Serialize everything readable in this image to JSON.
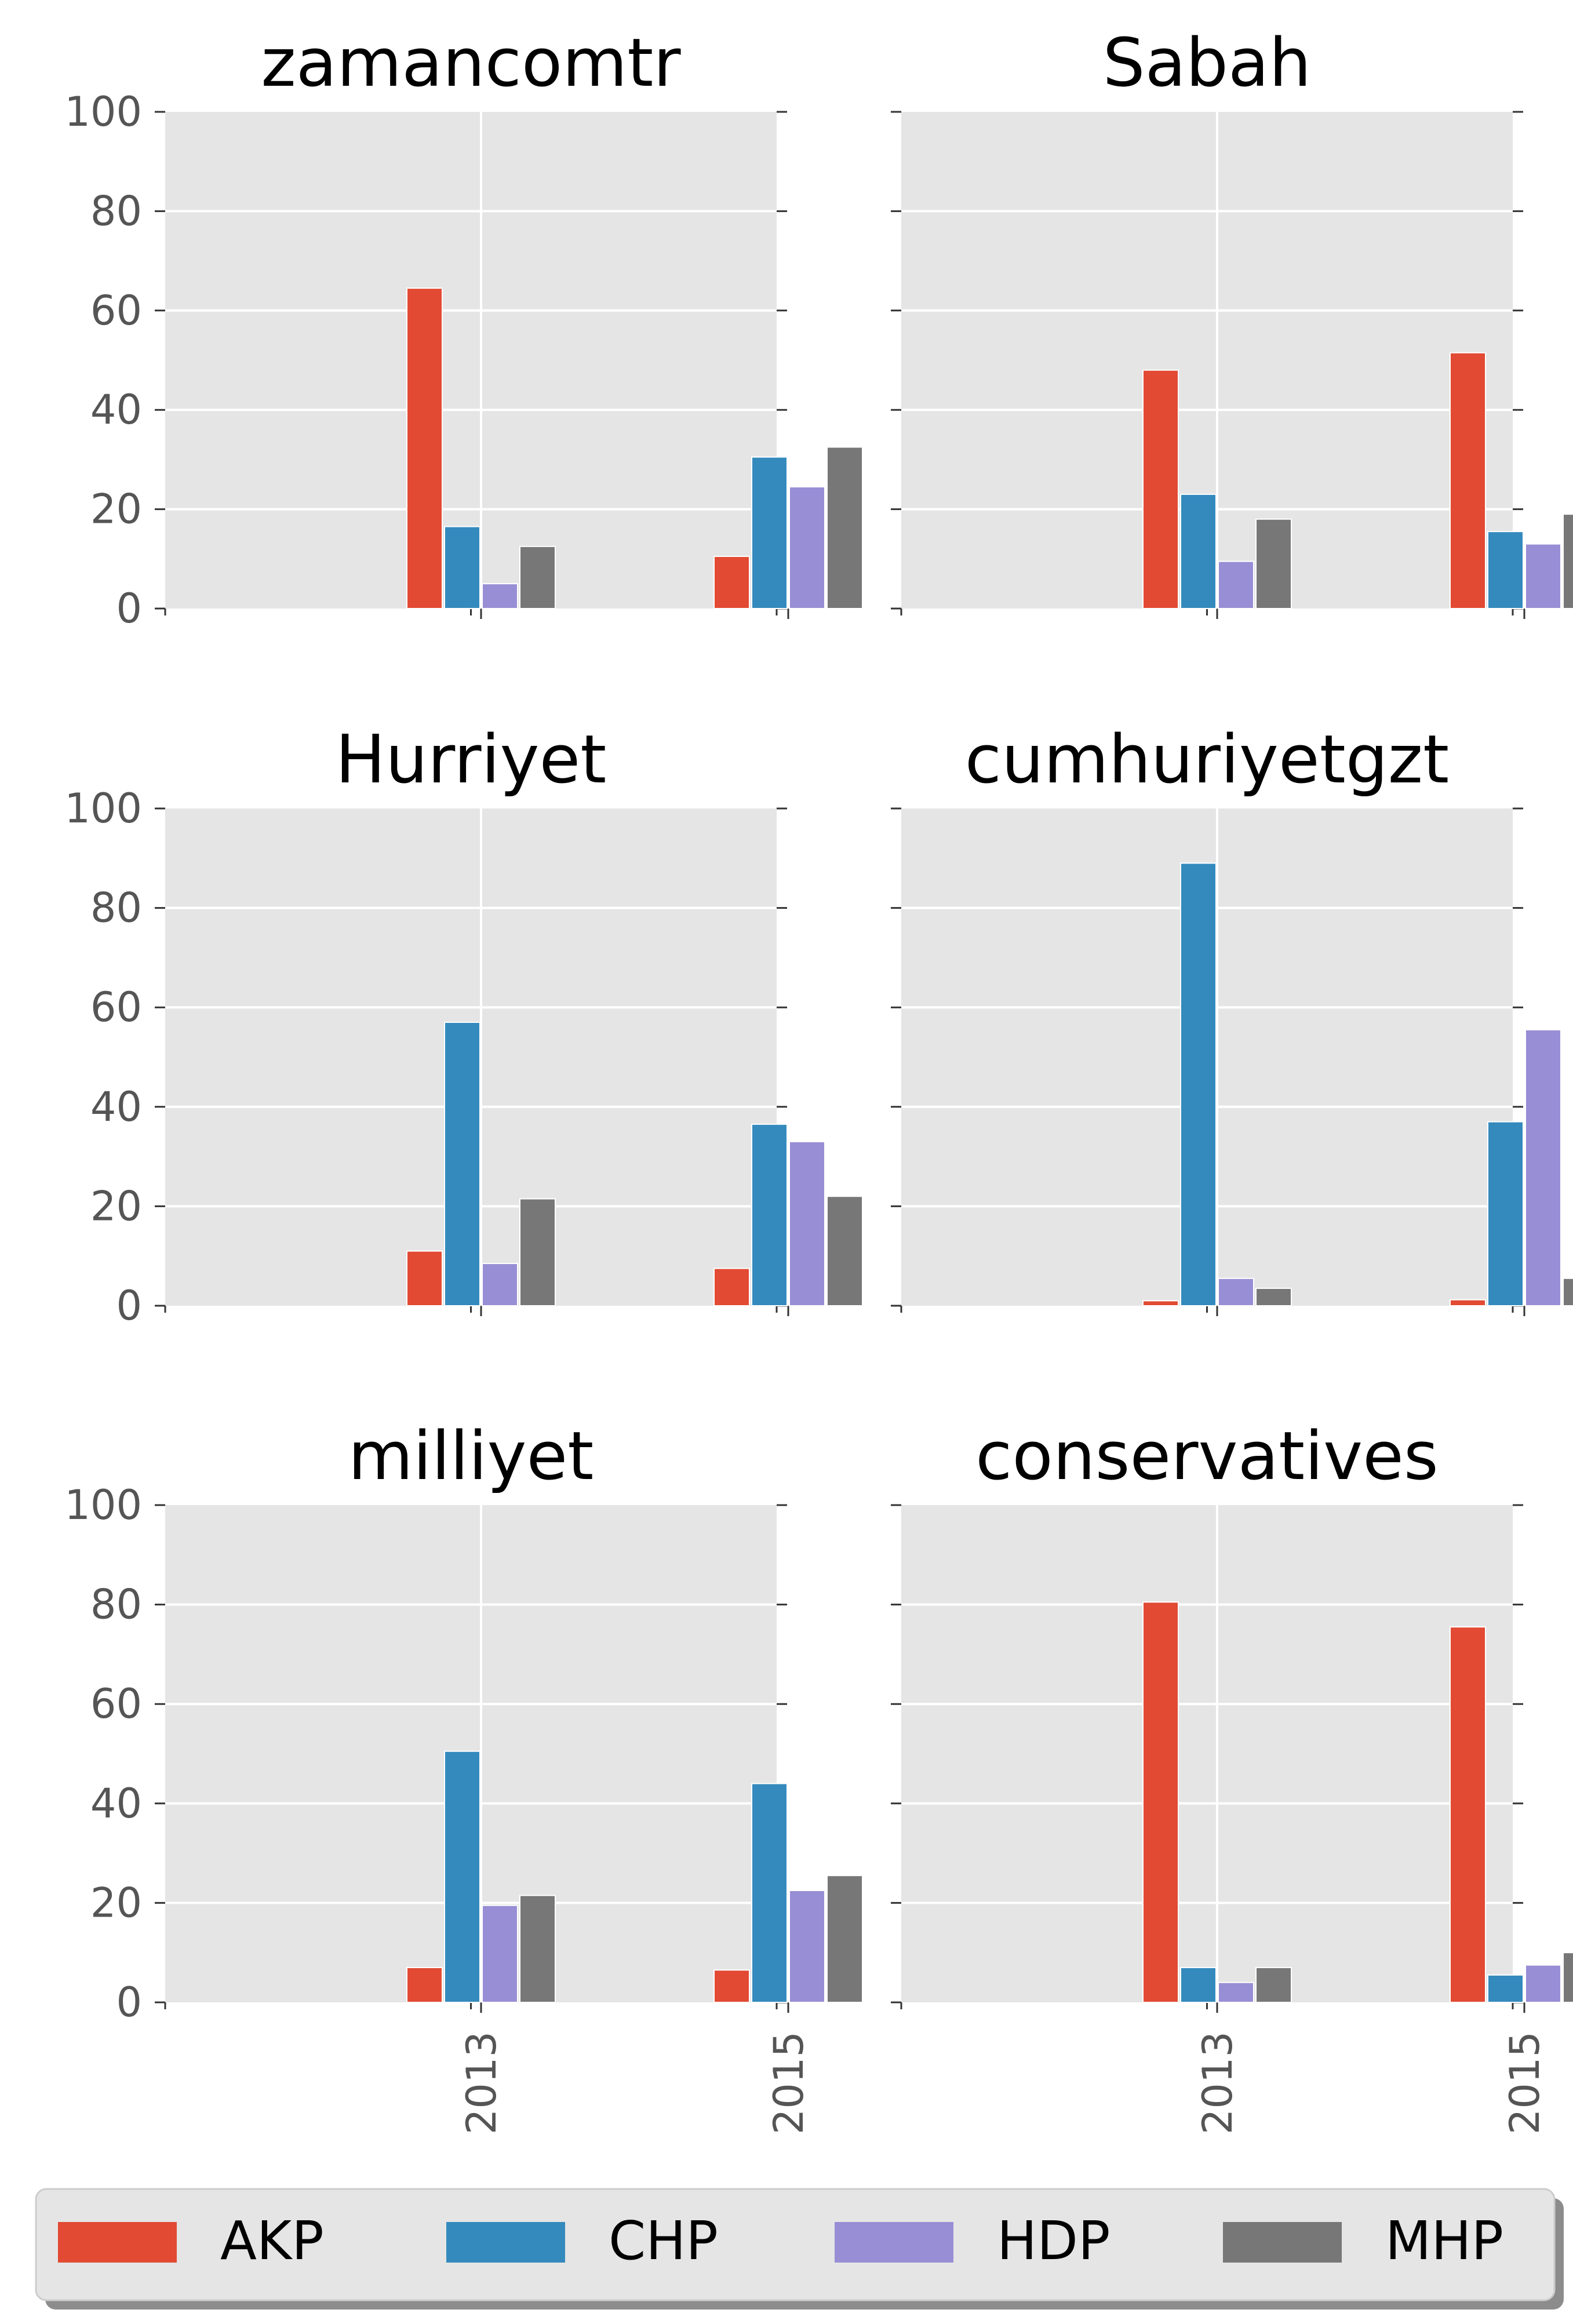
{
  "chart_data": [
    {
      "type": "bar",
      "title": "zamancomtr",
      "categories": [
        "2013",
        "2015"
      ],
      "series": [
        {
          "name": "AKP",
          "values": [
            64.5,
            10.5
          ]
        },
        {
          "name": "CHP",
          "values": [
            16.5,
            30.5
          ]
        },
        {
          "name": "HDP",
          "values": [
            5,
            24.5
          ]
        },
        {
          "name": "MHP",
          "values": [
            12.5,
            32.5
          ]
        }
      ],
      "ylim": [
        0,
        100
      ],
      "yticks": [
        "0",
        "20",
        "40",
        "60",
        "80",
        "100"
      ],
      "grid": true
    },
    {
      "type": "bar",
      "title": "Sabah",
      "categories": [
        "2013",
        "2015"
      ],
      "series": [
        {
          "name": "AKP",
          "values": [
            48,
            51.5
          ]
        },
        {
          "name": "CHP",
          "values": [
            23,
            15.5
          ]
        },
        {
          "name": "HDP",
          "values": [
            9.5,
            13
          ]
        },
        {
          "name": "MHP",
          "values": [
            18,
            19
          ]
        }
      ],
      "ylim": [
        0,
        100
      ],
      "yticks": [
        "0",
        "20",
        "40",
        "60",
        "80",
        "100"
      ],
      "grid": true
    },
    {
      "type": "bar",
      "title": "Hurriyet",
      "categories": [
        "2013",
        "2015"
      ],
      "series": [
        {
          "name": "AKP",
          "values": [
            11,
            7.5
          ]
        },
        {
          "name": "CHP",
          "values": [
            57,
            36.5
          ]
        },
        {
          "name": "HDP",
          "values": [
            8.5,
            33
          ]
        },
        {
          "name": "MHP",
          "values": [
            21.5,
            22
          ]
        }
      ],
      "ylim": [
        0,
        100
      ],
      "yticks": [
        "0",
        "20",
        "40",
        "60",
        "80",
        "100"
      ],
      "grid": true
    },
    {
      "type": "bar",
      "title": "cumhuriyetgzt",
      "categories": [
        "2013",
        "2015"
      ],
      "series": [
        {
          "name": "AKP",
          "values": [
            1,
            1.2
          ]
        },
        {
          "name": "CHP",
          "values": [
            89,
            37
          ]
        },
        {
          "name": "HDP",
          "values": [
            5.5,
            55.5
          ]
        },
        {
          "name": "MHP",
          "values": [
            3.5,
            5.5
          ]
        }
      ],
      "ylim": [
        0,
        100
      ],
      "yticks": [
        "0",
        "20",
        "40",
        "60",
        "80",
        "100"
      ],
      "grid": true
    },
    {
      "type": "bar",
      "title": "milliyet",
      "categories": [
        "2013",
        "2015"
      ],
      "series": [
        {
          "name": "AKP",
          "values": [
            7,
            6.5
          ]
        },
        {
          "name": "CHP",
          "values": [
            50.5,
            44
          ]
        },
        {
          "name": "HDP",
          "values": [
            19.5,
            22.5
          ]
        },
        {
          "name": "MHP",
          "values": [
            21.5,
            25.5
          ]
        }
      ],
      "ylim": [
        0,
        100
      ],
      "yticks": [
        "0",
        "20",
        "40",
        "60",
        "80",
        "100"
      ],
      "grid": true
    },
    {
      "type": "bar",
      "title": "conservatives",
      "categories": [
        "2013",
        "2015"
      ],
      "series": [
        {
          "name": "AKP",
          "values": [
            80.5,
            75.5
          ]
        },
        {
          "name": "CHP",
          "values": [
            7,
            5.5
          ]
        },
        {
          "name": "HDP",
          "values": [
            4,
            7.5
          ]
        },
        {
          "name": "MHP",
          "values": [
            7,
            10
          ]
        }
      ],
      "ylim": [
        0,
        100
      ],
      "yticks": [
        "0",
        "20",
        "40",
        "60",
        "80",
        "100"
      ],
      "grid": true
    }
  ],
  "legend": {
    "placement": "bottom",
    "items": [
      {
        "name": "AKP",
        "color": "#E24A33"
      },
      {
        "name": "CHP",
        "color": "#348ABD"
      },
      {
        "name": "HDP",
        "color": "#988ED5"
      },
      {
        "name": "MHP",
        "color": "#777777"
      }
    ]
  },
  "colors": {
    "plot_background": "#E5E5E5",
    "grid": "#FFFFFF",
    "tick_label": "#555555",
    "title": "#000000"
  }
}
